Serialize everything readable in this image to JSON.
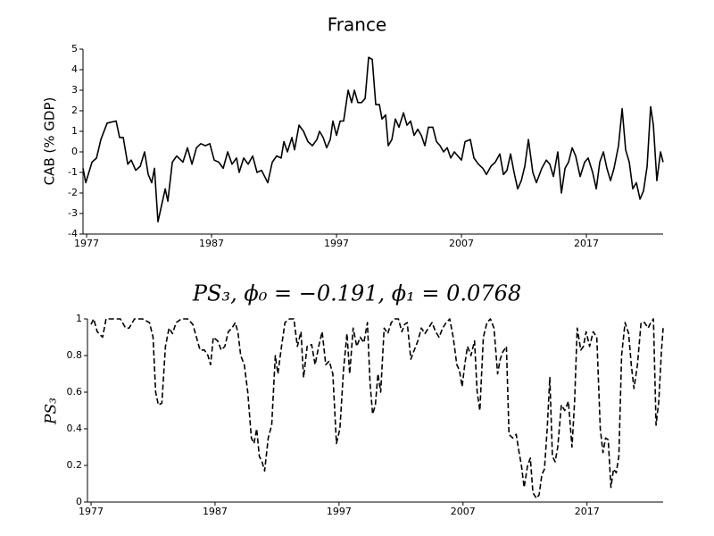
{
  "chart_data": [
    {
      "type": "line",
      "title": "France",
      "ylabel": "CAB (% GDP)",
      "xlim": [
        1976.71,
        2023.14
      ],
      "xticks": [
        1977,
        1987,
        1997,
        2007,
        2017
      ],
      "ylim": [
        -4,
        5
      ],
      "yticks": [
        -4,
        -3,
        -2,
        -1,
        0,
        1,
        2,
        3,
        4,
        5
      ],
      "linestyle": "solid",
      "x": [
        1976.71,
        1976.93,
        1977.43,
        1977.79,
        1978.14,
        1978.64,
        1979.36,
        1979.64,
        1979.93,
        1980.29,
        1980.57,
        1980.93,
        1981.29,
        1981.64,
        1981.93,
        1982.21,
        1982.43,
        1982.71,
        1983.29,
        1983.5,
        1983.86,
        1984.21,
        1984.71,
        1985.07,
        1985.43,
        1985.79,
        1986.14,
        1986.5,
        1986.86,
        1987.21,
        1987.57,
        1987.93,
        1988.29,
        1988.64,
        1989.0,
        1989.21,
        1989.57,
        1989.93,
        1990.29,
        1990.64,
        1991.0,
        1991.5,
        1991.86,
        1992.21,
        1992.57,
        1992.79,
        1993.07,
        1993.43,
        1993.64,
        1994.0,
        1994.36,
        1994.71,
        1995.07,
        1995.43,
        1995.64,
        1995.93,
        1996.21,
        1996.5,
        1996.71,
        1997.0,
        1997.29,
        1997.57,
        1997.93,
        1998.21,
        1998.43,
        1998.71,
        1999.0,
        1999.29,
        1999.57,
        1999.86,
        2000.14,
        2000.43,
        2000.64,
        2000.93,
        2001.14,
        2001.43,
        2001.71,
        2002.0,
        2002.36,
        2002.64,
        2002.93,
        2003.21,
        2003.5,
        2003.79,
        2004.07,
        2004.36,
        2004.71,
        2005.0,
        2005.29,
        2005.57,
        2005.86,
        2006.14,
        2006.43,
        2006.71,
        2007.0,
        2007.29,
        2007.71,
        2008.0,
        2008.36,
        2008.71,
        2009.0,
        2009.36,
        2009.71,
        2010.07,
        2010.36,
        2010.64,
        2010.93,
        2011.21,
        2011.5,
        2011.79,
        2012.07,
        2012.36,
        2012.71,
        2013.0,
        2013.43,
        2013.79,
        2014.07,
        2014.36,
        2014.71,
        2015.0,
        2015.29,
        2015.57,
        2015.86,
        2016.14,
        2016.5,
        2016.86,
        2017.14,
        2017.5,
        2017.79,
        2018.07,
        2018.36,
        2018.64,
        2018.93,
        2019.21,
        2019.57,
        2019.86,
        2020.14,
        2020.43,
        2020.71,
        2021.0,
        2021.29,
        2021.57,
        2021.86,
        2022.14,
        2022.36,
        2022.64,
        2022.93,
        2023.14
      ],
      "series": [
        {
          "color": "#000000",
          "values": [
            -0.8,
            -1.5,
            -0.5,
            -0.3,
            0.6,
            1.4,
            1.5,
            0.7,
            0.7,
            -0.6,
            -0.4,
            -0.9,
            -0.7,
            0,
            -1.1,
            -1.5,
            -0.8,
            -3.4,
            -1.8,
            -2.4,
            -0.5,
            -0.2,
            -0.5,
            0.2,
            -0.6,
            0.2,
            0.4,
            0.3,
            0.4,
            -0.4,
            -0.5,
            -0.8,
            0,
            -0.6,
            -0.3,
            -1,
            -0.3,
            -0.6,
            -0.2,
            -1,
            -0.9,
            -1.5,
            -0.5,
            -0.2,
            -0.3,
            0.5,
            0,
            0.7,
            0.1,
            1.3,
            1.0,
            0.5,
            0.3,
            0.6,
            1.0,
            0.7,
            0.2,
            0.6,
            1.5,
            0.8,
            1.5,
            1.5,
            3.0,
            2.4,
            3.0,
            2.4,
            2.4,
            2.6,
            4.6,
            4.5,
            2.3,
            2.3,
            1.6,
            1.8,
            0.3,
            0.6,
            1.6,
            1.2,
            1.9,
            1.3,
            1.5,
            0.8,
            1.1,
            0.8,
            0.3,
            1.2,
            1.2,
            0.5,
            0.3,
            0,
            0.2,
            -0.3,
            0,
            -0.2,
            -0.4,
            0.5,
            0.6,
            -0.3,
            -0.6,
            -0.8,
            -1.1,
            -0.7,
            -0.5,
            -0.1,
            -1.1,
            -0.9,
            -0.1,
            -1.0,
            -1.8,
            -1.4,
            -0.7,
            0.6,
            -1.0,
            -1.5,
            -0.8,
            -0.4,
            -0.6,
            -1.2,
            0,
            -2.0,
            -0.8,
            -0.5,
            0.2,
            -0.2,
            -1.2,
            -0.5,
            -0.3,
            -1.0,
            -1.8,
            -0.5,
            0,
            -0.8,
            -1.4,
            -0.8,
            0.3,
            2.1,
            0.1,
            -0.5,
            -1.8,
            -1.5,
            -2.3,
            -1.9,
            -0.7,
            2.2,
            1.3,
            -1.4,
            0,
            -0.5
          ]
        }
      ]
    },
    {
      "type": "line",
      "title": "PS₃, ϕ₀ = −0.191, ϕ₁ = 0.0768",
      "ylabel": "PS₃",
      "xlim": [
        1976.71,
        2023.14
      ],
      "xticks": [
        1977,
        1987,
        1997,
        2007,
        2017
      ],
      "ylim": [
        0,
        1
      ],
      "yticks": [
        0,
        0.2,
        0.4,
        0.6,
        0.8,
        1
      ],
      "linestyle": "dashed",
      "x": [
        1977.0,
        1977.21,
        1977.5,
        1977.93,
        1978.21,
        1978.64,
        1979.36,
        1979.79,
        1980.07,
        1980.5,
        1981.14,
        1981.71,
        1982.0,
        1982.21,
        1982.43,
        1982.71,
        1983.0,
        1983.29,
        1983.57,
        1983.86,
        1984.29,
        1984.79,
        1985.21,
        1985.5,
        1985.79,
        1986.14,
        1986.43,
        1986.64,
        1986.86,
        1987.21,
        1987.5,
        1987.79,
        1988.07,
        1988.36,
        1988.64,
        1988.86,
        1989.07,
        1989.36,
        1989.64,
        1989.93,
        1990.14,
        1990.36,
        1990.57,
        1990.79,
        1991.0,
        1991.29,
        1991.57,
        1991.86,
        1992.07,
        1992.36,
        1992.64,
        1993.0,
        1993.36,
        1993.64,
        1993.93,
        1994.14,
        1994.43,
        1994.79,
        1995.07,
        1995.36,
        1995.64,
        1995.93,
        1996.21,
        1996.5,
        1996.79,
        1997.07,
        1997.36,
        1997.64,
        1997.86,
        1998.14,
        1998.43,
        1998.71,
        1999.0,
        1999.29,
        1999.5,
        1999.71,
        1999.93,
        2000.14,
        2000.36,
        2000.64,
        2000.93,
        2001.21,
        2001.5,
        2001.79,
        2002.07,
        2002.29,
        2002.5,
        2002.79,
        2003.07,
        2003.36,
        2003.64,
        2003.93,
        2004.21,
        2004.5,
        2004.79,
        2005.07,
        2005.36,
        2005.64,
        2005.93,
        2006.21,
        2006.5,
        2006.71,
        2006.93,
        2007.14,
        2007.36,
        2007.64,
        2007.93,
        2008.14,
        2008.36,
        2008.64,
        2008.93,
        2009.21,
        2009.5,
        2009.79,
        2010.0,
        2010.21,
        2010.5,
        2010.71,
        2011.0,
        2011.29,
        2011.5,
        2011.71,
        2011.93,
        2012.21,
        2012.43,
        2012.64,
        2012.93,
        2013.14,
        2013.36,
        2013.57,
        2013.79,
        2014.0,
        2014.21,
        2014.43,
        2014.64,
        2014.93,
        2015.21,
        2015.5,
        2015.79,
        2016.0,
        2016.21,
        2016.5,
        2016.71,
        2016.93,
        2017.21,
        2017.5,
        2017.79,
        2018.07,
        2018.29,
        2018.5,
        2018.71,
        2018.93,
        2019.14,
        2019.36,
        2019.57,
        2019.79,
        2020.07,
        2020.36,
        2020.57,
        2020.79,
        2021.07,
        2021.36,
        2021.64,
        2021.93,
        2022.14,
        2022.36,
        2022.57,
        2022.79,
        2023.0,
        2023.14
      ],
      "series": [
        {
          "color": "#000000",
          "values": [
            0.97,
            1.0,
            0.93,
            0.9,
            1.0,
            1.0,
            1.0,
            0.95,
            0.95,
            1.0,
            1.0,
            0.98,
            0.9,
            0.6,
            0.53,
            0.54,
            0.85,
            0.95,
            0.92,
            0.98,
            1.0,
            1.0,
            0.97,
            0.9,
            0.83,
            0.83,
            0.8,
            0.75,
            0.9,
            0.88,
            0.83,
            0.85,
            0.93,
            0.95,
            0.98,
            0.92,
            0.8,
            0.75,
            0.6,
            0.35,
            0.32,
            0.4,
            0.25,
            0.22,
            0.17,
            0.35,
            0.42,
            0.8,
            0.7,
            0.85,
            0.98,
            1.0,
            1.0,
            0.85,
            0.93,
            0.68,
            0.85,
            0.86,
            0.75,
            0.85,
            0.93,
            0.75,
            0.77,
            0.7,
            0.32,
            0.4,
            0.72,
            0.92,
            0.7,
            0.95,
            0.85,
            0.9,
            0.87,
            0.98,
            0.65,
            0.48,
            0.53,
            0.7,
            0.6,
            0.95,
            0.92,
            0.98,
            1.0,
            1.0,
            0.93,
            0.97,
            0.98,
            0.78,
            0.83,
            0.88,
            0.95,
            0.92,
            0.95,
            0.98,
            0.93,
            0.9,
            0.95,
            0.98,
            1.0,
            0.9,
            0.75,
            0.72,
            0.63,
            0.75,
            0.85,
            0.8,
            0.88,
            0.6,
            0.5,
            0.9,
            0.98,
            1.0,
            0.95,
            0.7,
            0.78,
            0.82,
            0.85,
            0.37,
            0.35,
            0.37,
            0.28,
            0.2,
            0.08,
            0.2,
            0.24,
            0.05,
            0.02,
            0.04,
            0.15,
            0.18,
            0.4,
            0.68,
            0.25,
            0.22,
            0.3,
            0.53,
            0.5,
            0.55,
            0.3,
            0.55,
            0.95,
            0.83,
            0.85,
            0.93,
            0.85,
            0.93,
            0.9,
            0.4,
            0.27,
            0.35,
            0.34,
            0.08,
            0.18,
            0.16,
            0.25,
            0.8,
            0.98,
            0.92,
            0.75,
            0.62,
            0.75,
            0.98,
            0.98,
            0.95,
            0.98,
            1.0,
            0.42,
            0.55,
            0.82,
            0.95
          ]
        }
      ]
    }
  ]
}
